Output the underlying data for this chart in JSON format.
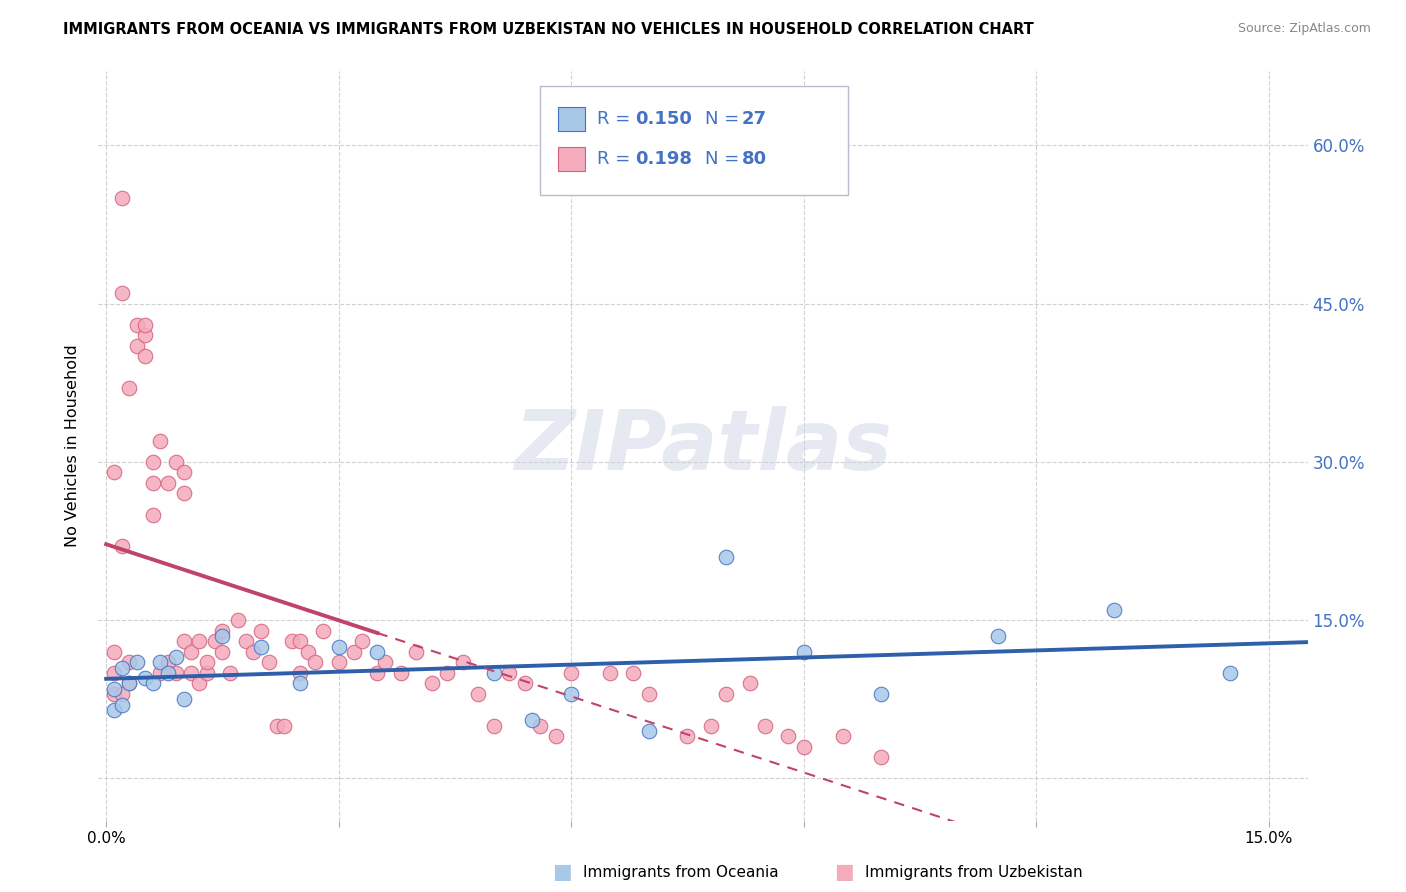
{
  "title": "IMMIGRANTS FROM OCEANIA VS IMMIGRANTS FROM UZBEKISTAN NO VEHICLES IN HOUSEHOLD CORRELATION CHART",
  "source": "Source: ZipAtlas.com",
  "ylabel": "No Vehicles in Household",
  "y_ticks": [
    0.0,
    0.15,
    0.3,
    0.45,
    0.6
  ],
  "y_tick_labels": [
    "",
    "15.0%",
    "30.0%",
    "45.0%",
    "60.0%"
  ],
  "x_ticks": [
    0.0,
    0.03,
    0.06,
    0.09,
    0.12,
    0.15
  ],
  "x_tick_labels": [
    "0.0%",
    "",
    "",
    "",
    "",
    "15.0%"
  ],
  "xlim": [
    -0.001,
    0.155
  ],
  "ylim": [
    -0.04,
    0.67
  ],
  "R_oceania": 0.15,
  "N_oceania": 27,
  "R_uzbekistan": 0.198,
  "N_uzbekistan": 80,
  "color_oceania_fill": "#A8C8E8",
  "color_oceania_edge": "#4472C4",
  "color_uzbekistan_fill": "#F4ABBC",
  "color_uzbekistan_edge": "#D4607A",
  "color_trend_oceania": "#2E5FAA",
  "color_trend_uzbekistan": "#C0446A",
  "watermark_text": "ZIPatlas",
  "trend_uzb_solid_end": 0.035,
  "oceania_x": [
    0.001,
    0.002,
    0.003,
    0.004,
    0.005,
    0.006,
    0.007,
    0.008,
    0.009,
    0.01,
    0.015,
    0.02,
    0.025,
    0.03,
    0.035,
    0.05,
    0.055,
    0.06,
    0.07,
    0.08,
    0.09,
    0.1,
    0.115,
    0.13,
    0.145,
    0.001,
    0.002
  ],
  "oceania_y": [
    0.085,
    0.105,
    0.09,
    0.11,
    0.095,
    0.09,
    0.11,
    0.1,
    0.115,
    0.075,
    0.135,
    0.125,
    0.09,
    0.125,
    0.12,
    0.1,
    0.055,
    0.08,
    0.045,
    0.21,
    0.12,
    0.08,
    0.135,
    0.16,
    0.1,
    0.065,
    0.07
  ],
  "uzbekistan_x": [
    0.001,
    0.001,
    0.001,
    0.002,
    0.002,
    0.003,
    0.003,
    0.003,
    0.004,
    0.004,
    0.005,
    0.005,
    0.005,
    0.006,
    0.006,
    0.006,
    0.007,
    0.007,
    0.008,
    0.008,
    0.009,
    0.009,
    0.01,
    0.01,
    0.01,
    0.011,
    0.011,
    0.012,
    0.012,
    0.013,
    0.013,
    0.014,
    0.015,
    0.015,
    0.016,
    0.017,
    0.018,
    0.019,
    0.02,
    0.021,
    0.022,
    0.023,
    0.024,
    0.025,
    0.025,
    0.026,
    0.027,
    0.028,
    0.03,
    0.032,
    0.033,
    0.035,
    0.036,
    0.038,
    0.04,
    0.042,
    0.044,
    0.046,
    0.048,
    0.05,
    0.052,
    0.054,
    0.056,
    0.058,
    0.06,
    0.065,
    0.068,
    0.07,
    0.075,
    0.078,
    0.08,
    0.083,
    0.085,
    0.088,
    0.09,
    0.095,
    0.1,
    0.001,
    0.002,
    0.002
  ],
  "uzbekistan_y": [
    0.1,
    0.12,
    0.08,
    0.55,
    0.46,
    0.09,
    0.11,
    0.37,
    0.41,
    0.43,
    0.4,
    0.42,
    0.43,
    0.25,
    0.28,
    0.3,
    0.32,
    0.1,
    0.11,
    0.28,
    0.3,
    0.1,
    0.29,
    0.27,
    0.13,
    0.1,
    0.12,
    0.09,
    0.13,
    0.1,
    0.11,
    0.13,
    0.12,
    0.14,
    0.1,
    0.15,
    0.13,
    0.12,
    0.14,
    0.11,
    0.05,
    0.05,
    0.13,
    0.1,
    0.13,
    0.12,
    0.11,
    0.14,
    0.11,
    0.12,
    0.13,
    0.1,
    0.11,
    0.1,
    0.12,
    0.09,
    0.1,
    0.11,
    0.08,
    0.05,
    0.1,
    0.09,
    0.05,
    0.04,
    0.1,
    0.1,
    0.1,
    0.08,
    0.04,
    0.05,
    0.08,
    0.09,
    0.05,
    0.04,
    0.03,
    0.04,
    0.02,
    0.29,
    0.22,
    0.08
  ]
}
